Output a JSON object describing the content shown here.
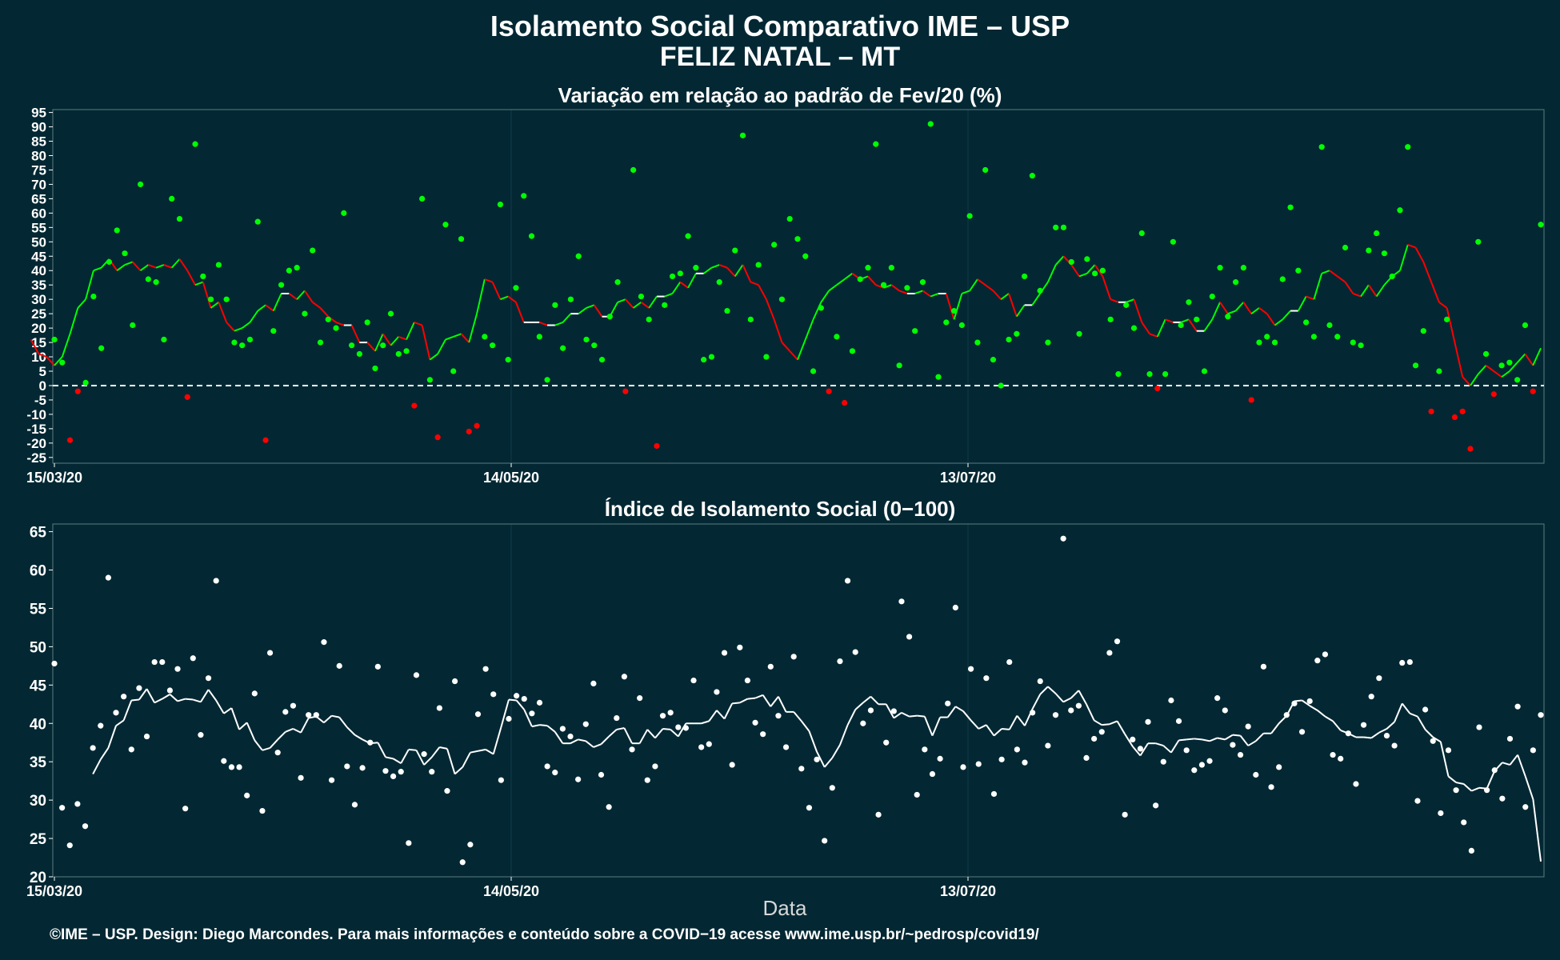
{
  "title": "Isolamento Social Comparativo IME – USP",
  "subtitle": "FELIZ NATAL – MT",
  "xlabel": "Data",
  "footer": "©IME – USP. Design: Diego Marcondes. Para mais informações e conteúdo sobre a COVID−19 acesse www.ime.usp.br/~pedrosp/covid19/",
  "colors": {
    "background": "#032833",
    "positive": "#00ff00",
    "negative": "#ff0000",
    "index": "#ffffff"
  },
  "chart_data": [
    {
      "type": "scatter",
      "title": "Variação em relação ao padrão de Fev/20 (%)",
      "x_start": "15/03/20",
      "x_ticks": [
        "15/03/20",
        "14/05/20",
        "13/07/20"
      ],
      "y_ticks": [
        95,
        90,
        85,
        80,
        75,
        70,
        65,
        60,
        55,
        50,
        45,
        40,
        35,
        30,
        25,
        20,
        15,
        10,
        5,
        0,
        -5,
        -10,
        -15,
        -20,
        -25
      ],
      "ylim": [
        -27,
        96
      ],
      "reference_line": 0,
      "series": [
        {
          "values": [
            16,
            8,
            -19,
            -2,
            1,
            31,
            13,
            43,
            54,
            46,
            21,
            70,
            37,
            36,
            16,
            65,
            58,
            -4,
            84,
            38,
            30,
            42,
            30,
            15,
            14,
            16,
            57,
            -19,
            19,
            35,
            40,
            41,
            25,
            47,
            15,
            23,
            20,
            60,
            14,
            11,
            22,
            6,
            14,
            25,
            11,
            12,
            -7,
            65,
            2,
            -18,
            56,
            5,
            51,
            -16,
            -14,
            17,
            14,
            63,
            9,
            34,
            66,
            52,
            17,
            2,
            28,
            13,
            30,
            45,
            16,
            14,
            9,
            24,
            36,
            -2,
            75,
            31,
            23,
            -21,
            28,
            38,
            39,
            52,
            41,
            9,
            10,
            36,
            26,
            47,
            87,
            23,
            42,
            10,
            49,
            30,
            58,
            51,
            45,
            5,
            27,
            -2,
            17,
            -6,
            12,
            37,
            41,
            84,
            35,
            41,
            7,
            34,
            19,
            36,
            91,
            3,
            22,
            26,
            21,
            59,
            15,
            75,
            9,
            0,
            16,
            18,
            38,
            73,
            33,
            15,
            55,
            55,
            43,
            18,
            44,
            39,
            40,
            23,
            4,
            28,
            20,
            53,
            4,
            -1,
            4,
            50,
            21,
            29,
            23,
            5,
            31,
            41,
            24,
            36,
            41,
            -5,
            15,
            17,
            15,
            37,
            62,
            40,
            22,
            17,
            83,
            21,
            17,
            48,
            15,
            14,
            47,
            53,
            46,
            38,
            61,
            83,
            7,
            19,
            -9,
            5,
            23,
            -11,
            -9,
            -22,
            50,
            11,
            -3,
            7,
            8,
            2,
            21,
            -2,
            56
          ]
        },
        {
          "values": [
            16,
            11,
            10,
            7,
            10,
            18,
            27,
            30,
            40,
            41,
            44,
            40,
            42,
            43,
            40,
            42,
            41,
            42,
            41,
            44,
            40,
            35,
            36,
            27,
            29,
            22,
            19,
            20,
            22,
            26,
            28,
            26,
            32,
            32,
            30,
            33,
            29,
            27,
            24,
            22,
            21,
            21,
            15,
            15,
            12,
            18,
            14,
            17,
            16,
            22,
            21,
            9,
            11,
            16,
            17,
            18,
            15,
            25,
            37,
            36,
            30,
            31,
            29,
            22,
            22,
            22,
            21,
            21,
            22,
            25,
            25,
            27,
            28,
            24,
            24,
            29,
            30,
            27,
            29,
            27,
            31,
            31,
            32,
            36,
            34,
            39,
            39,
            41,
            42,
            41,
            38,
            42,
            36,
            35,
            30,
            23,
            15,
            12,
            9,
            16,
            23,
            29,
            33,
            35,
            37,
            39,
            37,
            38,
            35,
            34,
            35,
            33,
            32,
            32,
            33,
            31,
            32,
            32,
            23,
            32,
            33,
            37,
            35,
            33,
            30,
            32,
            24,
            28,
            28,
            32,
            36,
            42,
            45,
            42,
            38,
            39,
            42,
            38,
            30,
            29,
            29,
            30,
            22,
            18,
            17,
            23,
            22,
            22,
            23,
            19,
            19,
            23,
            29,
            25,
            26,
            29,
            25,
            27,
            25,
            21,
            23,
            26,
            26,
            31,
            30,
            39,
            40,
            38,
            36,
            32,
            31,
            35,
            31,
            35,
            38,
            40,
            49,
            48,
            43,
            36,
            29,
            27,
            15,
            3,
            0,
            4,
            7,
            5,
            3,
            5,
            8,
            11,
            7,
            13
          ]
        }
      ]
    },
    {
      "type": "scatter",
      "title": "Índice de Isolamento Social (0−100)",
      "x_start": "15/03/20",
      "x_ticks": [
        "15/03/20",
        "14/05/20",
        "13/07/20"
      ],
      "y_ticks": [
        65,
        60,
        55,
        50,
        45,
        40,
        35,
        30,
        25,
        20
      ],
      "ylim": [
        20,
        66
      ],
      "series": [
        {
          "values": [
            47.8,
            29.0,
            24.1,
            29.5,
            26.6,
            36.8,
            39.7,
            59.0,
            41.4,
            43.5,
            36.6,
            44.6,
            38.3,
            48.0,
            48.0,
            44.3,
            47.1,
            28.9,
            48.5,
            38.5,
            45.9,
            58.6,
            35.1,
            34.3,
            34.3,
            30.6,
            43.9,
            28.6,
            49.2,
            36.2,
            41.5,
            42.3,
            32.9,
            41.1,
            41.1,
            50.6,
            32.6,
            47.5,
            34.4,
            29.4,
            34.2,
            37.5,
            47.4,
            33.8,
            33.1,
            33.7,
            24.4,
            46.3,
            36.0,
            33.7,
            42.0,
            31.2,
            45.5,
            21.9,
            24.2,
            41.2,
            47.1,
            43.8,
            32.6,
            40.6,
            43.6,
            43.2,
            41.3,
            42.7,
            34.4,
            33.6,
            39.3,
            38.3,
            32.7,
            39.9,
            45.2,
            33.3,
            29.1,
            40.7,
            46.1,
            36.6,
            43.3,
            32.6,
            34.4,
            41.0,
            41.4,
            39.5,
            39.4,
            45.6,
            36.9,
            37.3,
            44.1,
            49.2,
            34.6,
            49.9,
            45.6,
            40.1,
            38.6,
            47.4,
            41.0,
            36.9,
            48.7,
            34.1,
            29.0,
            35.3,
            24.7,
            31.6,
            48.1,
            58.6,
            49.3,
            40.0,
            41.7,
            28.1,
            37.5,
            41.6,
            55.9,
            51.3,
            30.7,
            36.6,
            33.4,
            35.4,
            42.6,
            55.1,
            34.3,
            47.1,
            34.7,
            45.9,
            30.8,
            35.3,
            48.0,
            36.6,
            34.9,
            41.4,
            45.5,
            37.1,
            41.1,
            64.1,
            41.7,
            42.3,
            35.5,
            38.0,
            38.9,
            49.2,
            50.7,
            28.1,
            37.9,
            36.7,
            40.2,
            29.3,
            35.0,
            43.0,
            40.3,
            36.5,
            33.9,
            34.6,
            35.1,
            43.3,
            41.7,
            37.2,
            35.9,
            39.6,
            33.3,
            47.4,
            31.7,
            34.3,
            41.1,
            42.6,
            38.9,
            42.9,
            48.2,
            49.0,
            35.9,
            35.4,
            38.7,
            32.1,
            39.8,
            43.5,
            45.9,
            38.4,
            37.1,
            47.9,
            48.0,
            29.9,
            41.8,
            37.7,
            28.3,
            36.5,
            31.3,
            27.1,
            23.4,
            39.5,
            31.3,
            33.9,
            30.2,
            38.0,
            42.2,
            29.1,
            36.5,
            41.1
          ]
        },
        {
          "values": [
            33.4,
            35.3,
            36.8,
            39.7,
            40.4,
            43.0,
            43.1,
            44.5,
            42.7,
            43.2,
            43.8,
            42.9,
            43.2,
            43.1,
            42.8,
            44.4,
            43.0,
            41.3,
            42.0,
            39.2,
            40.1,
            37.8,
            36.5,
            36.8,
            37.9,
            38.9,
            39.3,
            38.8,
            40.7,
            40.9,
            40.1,
            41.0,
            40.8,
            39.5,
            38.5,
            37.9,
            37.4,
            37.5,
            35.6,
            35.4,
            34.8,
            36.6,
            36.5,
            34.6,
            35.6,
            36.9,
            36.7,
            33.4,
            34.3,
            36.2,
            36.4,
            36.6,
            36.0,
            39.5,
            43.1,
            43.0,
            41.8,
            39.6,
            39.8,
            39.7,
            38.9,
            37.4,
            37.4,
            37.9,
            37.7,
            36.9,
            37.3,
            38.3,
            39.2,
            39.4,
            37.4,
            37.4,
            39.2,
            38.1,
            39.3,
            39.2,
            38.3,
            40.0,
            40.0,
            40.0,
            40.3,
            41.7,
            40.6,
            42.6,
            42.7,
            43.2,
            43.3,
            43.7,
            42.2,
            43.5,
            41.5,
            41.5,
            40.3,
            39.0,
            36.3,
            34.3,
            35.5,
            37.2,
            39.8,
            41.8,
            42.7,
            43.5,
            42.5,
            42.5,
            40.7,
            41.4,
            40.9,
            41.0,
            40.9,
            38.4,
            40.8,
            40.8,
            42.2,
            41.6,
            40.4,
            39.3,
            39.8,
            38.4,
            39.3,
            39.2,
            41.0,
            39.7,
            41.9,
            43.8,
            44.8,
            43.9,
            42.8,
            43.3,
            44.3,
            42.5,
            40.4,
            39.8,
            39.9,
            40.3,
            38.6,
            37.0,
            35.8,
            37.4,
            37.4,
            37.1,
            36.2,
            37.8,
            37.9,
            38.0,
            37.9,
            37.7,
            38.1,
            37.9,
            38.5,
            38.4,
            37.1,
            37.7,
            38.7,
            38.7,
            40.0,
            41.0,
            42.9,
            43.0,
            42.3,
            41.7,
            40.9,
            40.3,
            39.1,
            38.7,
            38.2,
            38.2,
            38.1,
            38.8,
            39.3,
            40.2,
            42.6,
            41.3,
            40.9,
            39.2,
            38.2,
            37.6,
            33.1,
            32.3,
            32.1,
            31.2,
            31.6,
            31.5,
            33.8,
            34.9,
            34.6,
            35.9,
            33.1,
            30.1,
            22.0
          ]
        }
      ]
    }
  ]
}
